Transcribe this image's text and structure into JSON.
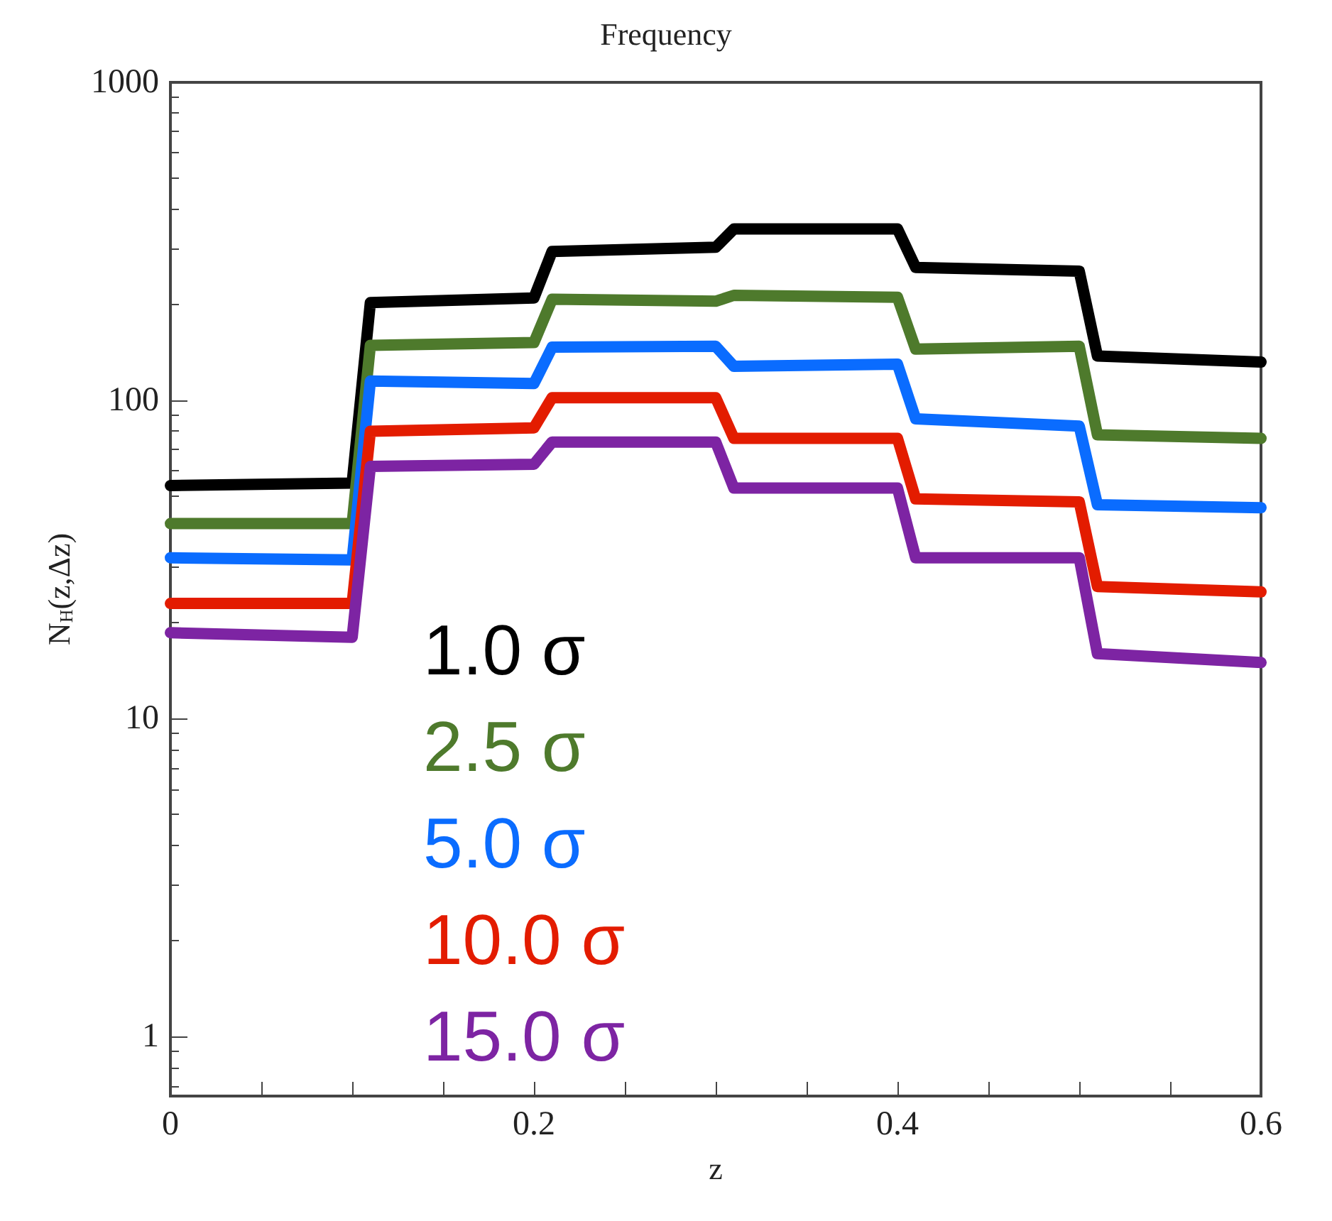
{
  "chart_data": {
    "type": "line",
    "title": "Frequency",
    "xlabel": "z",
    "ylabel": "N$_{H}$(z,Δz)",
    "log": "y",
    "xlim": [
      0,
      0.6
    ],
    "xticks": [
      0,
      {
        "value": 0.05,
        "label": null
      },
      {
        "value": 0.1,
        "label": null
      },
      {
        "value": 0.15,
        "label": null
      },
      0.2,
      {
        "value": 0.25,
        "label": null
      },
      {
        "value": 0.3,
        "label": null
      },
      {
        "value": 0.35,
        "label": null
      },
      0.4,
      {
        "value": 0.45,
        "label": null
      },
      {
        "value": 0.5,
        "label": null
      },
      {
        "value": 0.55,
        "label": null
      },
      0.6
    ],
    "ylim": [
      0.65,
      1000
    ],
    "yticks": [
      1,
      10,
      100,
      1000
    ],
    "grid": false,
    "legend": "bottom left",
    "marker": "none",
    "line_style": "solid",
    "x": [
      0,
      0.1,
      0.11,
      0.2,
      0.21,
      0.3,
      0.31,
      0.4,
      0.41,
      0.5,
      0.51,
      0.6
    ],
    "series": [
      {
        "name": "1.0 σ",
        "color": "#000000",
        "values": [
          54,
          55,
          203,
          210,
          294,
          303,
          346,
          346,
          262,
          255,
          138,
          132
        ]
      },
      {
        "name": "2.5 σ",
        "color": "#4e7a2c",
        "values": [
          41,
          41,
          149,
          152,
          208,
          205,
          214,
          211,
          145,
          148,
          78,
          76
        ]
      },
      {
        "name": "5.0 σ",
        "color": "#0a6cff",
        "values": [
          32,
          31.5,
          115,
          113,
          147,
          148,
          128,
          130,
          87.5,
          83,
          47,
          46
        ]
      },
      {
        "name": "10.0 σ",
        "color": "#e31c00",
        "values": [
          23,
          23,
          80,
          82,
          102,
          102,
          76,
          76,
          49,
          48,
          26,
          25
        ]
      },
      {
        "name": "15.0 σ",
        "color": "#7d24a3",
        "values": [
          18.6,
          18,
          62,
          63,
          74,
          74,
          53,
          53,
          32,
          32,
          16,
          15
        ]
      }
    ]
  }
}
